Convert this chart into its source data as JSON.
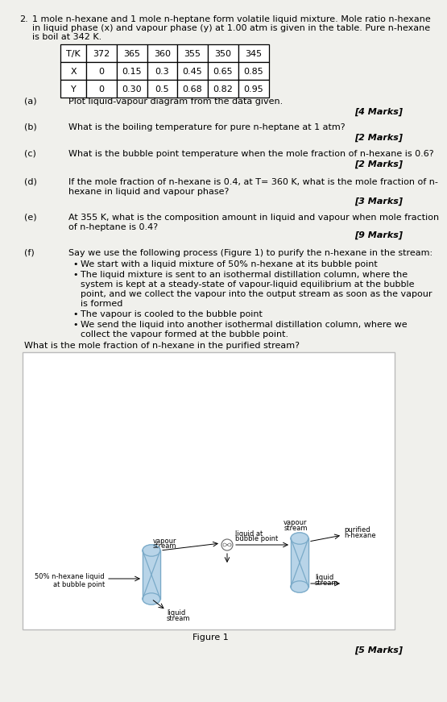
{
  "title_number": "2.",
  "title_text": "1 mole n-hexane and 1 mole n-heptane form volatile liquid mixture. Mole ratio n-hexane\nin liquid phase (x) and vapour phase (y) at 1.00 atm is given in the table. Pure n-hexane\nis boil at 342 K.",
  "table": {
    "headers": [
      "T/K",
      "372",
      "365",
      "360",
      "355",
      "350",
      "345"
    ],
    "row_x": [
      "X",
      "0",
      "0.15",
      "0.3",
      "0.45",
      "0.65",
      "0.85"
    ],
    "row_y": [
      "Y",
      "0",
      "0.30",
      "0.5",
      "0.68",
      "0.82",
      "0.95"
    ]
  },
  "q_a_label": "(a)",
  "q_a_text": "Plot liquid-vapour diagram from the data given.",
  "q_a_marks": "[4 Marks]",
  "q_b_label": "(b)",
  "q_b_text": "What is the boiling temperature for pure n-heptane at 1 atm?",
  "q_b_marks": "[2 Marks]",
  "q_c_label": "(c)",
  "q_c_text": "What is the bubble point temperature when the mole fraction of n-hexane is 0.6?",
  "q_c_marks": "[2 Marks]",
  "q_d_label": "(d)",
  "q_d_text1": "If the mole fraction of n-hexane is 0.4, at T= 360 K, what is the mole fraction of n-",
  "q_d_text2": "hexane in liquid and vapour phase?",
  "q_d_marks": "[3 Marks]",
  "q_e_label": "(e)",
  "q_e_text1": "At 355 K, what is the composition amount in liquid and vapour when mole fraction",
  "q_e_text2": "of n-heptane is 0.4?",
  "q_e_marks": "[9 Marks]",
  "q_f_label": "(f)",
  "q_f_text": "Say we use the following process (Figure 1) to purify the n-hexane in the stream:",
  "q_f_marks": "[5 Marks]",
  "bullet1": "We start with a liquid mixture of 50% n-hexane at its bubble point",
  "bullet2a": "The liquid mixture is sent to an isothermal distillation column, where the",
  "bullet2b": "system is kept at a steady-state of vapour-liquid equilibrium at the bubble",
  "bullet2c": "point, and we collect the vapour into the output stream as soon as the vapour",
  "bullet2d": "is formed",
  "bullet3": "The vapour is cooled to the bubble point",
  "bullet4a": "We send the liquid into another isothermal distillation column, where we",
  "bullet4b": "collect the vapour formed at the bubble point.",
  "final_q": "What is the mole fraction of n-hexane in the purified stream?",
  "fig_caption": "Figure 1",
  "bg_color": "#f0f0ec",
  "col_fill": "#b8d4e8",
  "col_edge": "#7aaac8",
  "lw": 1.0,
  "fs_main": 8.0,
  "fs_small": 6.5,
  "fs_fig_label": 6.0
}
